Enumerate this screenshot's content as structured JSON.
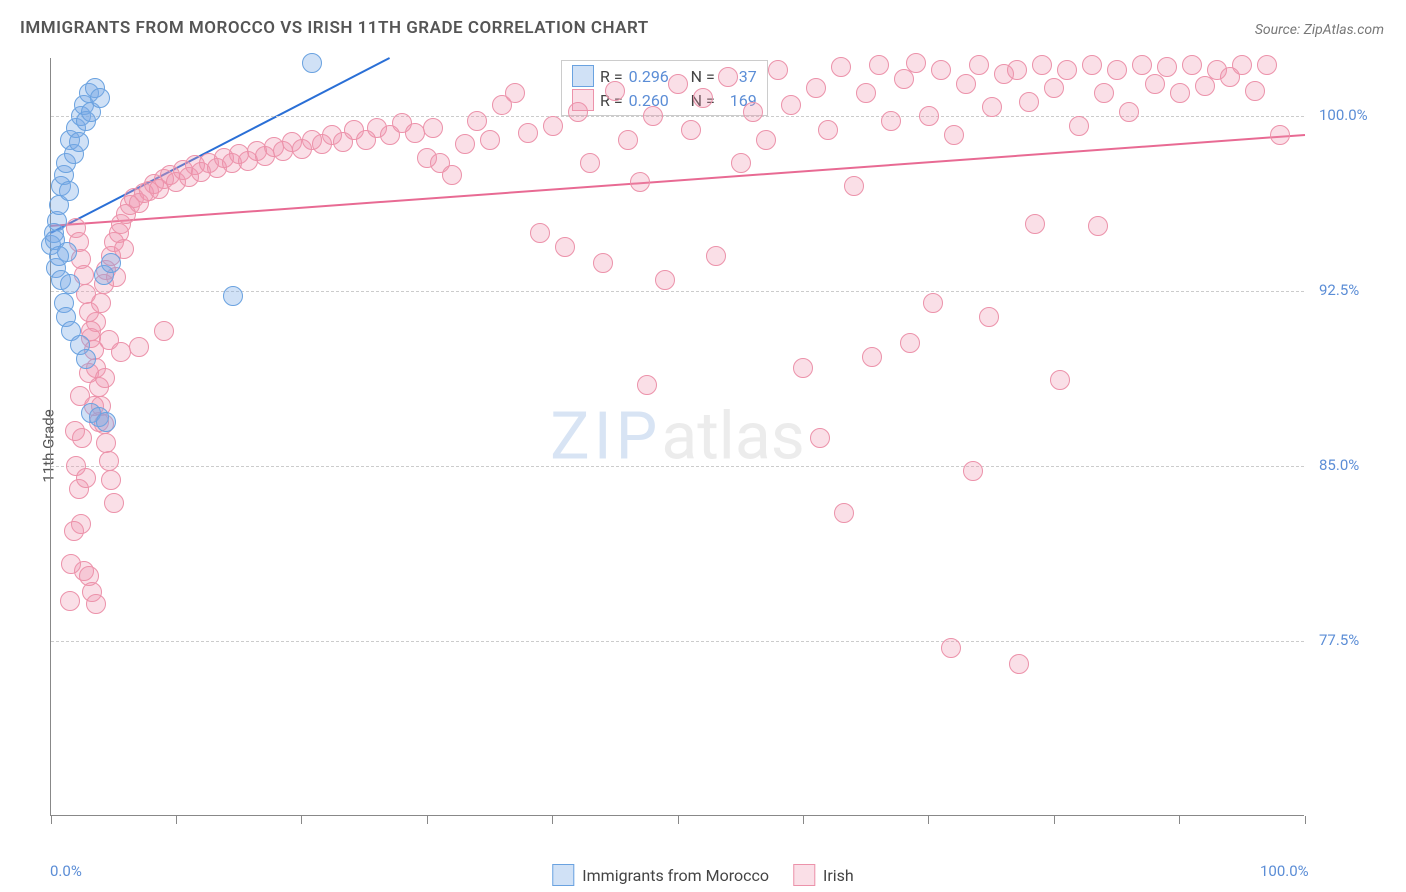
{
  "chart": {
    "type": "scatter",
    "title": "IMMIGRANTS FROM MOROCCO VS IRISH 11TH GRADE CORRELATION CHART",
    "source": "Source: ZipAtlas.com",
    "ylabel": "11th Grade",
    "watermark_zip": "ZIP",
    "watermark_atlas": "atlas",
    "background_color": "#ffffff",
    "grid_color": "#cccccc",
    "axis_color": "#888888",
    "label_color": "#5b8dd6",
    "title_color": "#555555",
    "xlim": [
      0,
      100
    ],
    "ylim": [
      70,
      102.5
    ],
    "yticks": [
      77.5,
      85.0,
      92.5,
      100.0
    ],
    "ytick_labels": [
      "77.5%",
      "85.0%",
      "92.5%",
      "100.0%"
    ],
    "xtick_labels": {
      "min": "0.0%",
      "max": "100.0%"
    },
    "xtick_positions": [
      0,
      10,
      20,
      30,
      40,
      50,
      60,
      70,
      80,
      90,
      100
    ],
    "marker_radius": 10,
    "marker_stroke_width": 1.5,
    "trend_line_width": 2,
    "series": [
      {
        "name": "Immigrants from Morocco",
        "fill_color": "rgba(120,170,230,0.35)",
        "stroke_color": "#6aa2e0",
        "line_color": "#2a6fd6",
        "r": "0.296",
        "n": "37",
        "trend": {
          "x1": 0,
          "y1": 95.0,
          "x2": 27,
          "y2": 102.5
        },
        "points": [
          [
            0,
            94.5
          ],
          [
            0.2,
            95.0
          ],
          [
            0.3,
            94.7
          ],
          [
            0.5,
            95.5
          ],
          [
            0.6,
            96.2
          ],
          [
            0.8,
            97.0
          ],
          [
            1.0,
            97.5
          ],
          [
            1.2,
            98.0
          ],
          [
            1.3,
            94.2
          ],
          [
            1.4,
            96.8
          ],
          [
            1.5,
            99.0
          ],
          [
            1.8,
            98.4
          ],
          [
            2.0,
            99.5
          ],
          [
            2.2,
            98.9
          ],
          [
            2.4,
            100.0
          ],
          [
            2.6,
            100.5
          ],
          [
            2.8,
            99.8
          ],
          [
            3.0,
            101.0
          ],
          [
            3.2,
            100.2
          ],
          [
            3.5,
            101.2
          ],
          [
            3.9,
            100.8
          ],
          [
            0.4,
            93.5
          ],
          [
            0.8,
            93.0
          ],
          [
            1.0,
            92.0
          ],
          [
            1.2,
            91.4
          ],
          [
            1.6,
            90.8
          ],
          [
            2.3,
            90.2
          ],
          [
            2.8,
            89.6
          ],
          [
            1.5,
            92.8
          ],
          [
            4.2,
            93.2
          ],
          [
            4.8,
            93.7
          ],
          [
            14.5,
            92.3
          ],
          [
            3.2,
            87.3
          ],
          [
            3.8,
            87.1
          ],
          [
            4.4,
            86.9
          ],
          [
            20.8,
            102.3
          ],
          [
            0.6,
            94.0
          ]
        ]
      },
      {
        "name": "Irish",
        "fill_color": "rgba(240,150,175,0.30)",
        "stroke_color": "#ec92aa",
        "line_color": "#e86a93",
        "r": "0.260",
        "n": "169",
        "trend": {
          "x1": 0,
          "y1": 95.3,
          "x2": 100,
          "y2": 99.2
        },
        "points": [
          [
            2,
            85.0
          ],
          [
            2.2,
            84.0
          ],
          [
            2.4,
            82.5
          ],
          [
            2.6,
            80.5
          ],
          [
            2.3,
            88.0
          ],
          [
            2.5,
            86.2
          ],
          [
            2.8,
            84.5
          ],
          [
            3.0,
            89.0
          ],
          [
            3.2,
            90.5
          ],
          [
            3.4,
            87.6
          ],
          [
            3.6,
            91.2
          ],
          [
            3.8,
            86.9
          ],
          [
            4.0,
            92.0
          ],
          [
            4.2,
            92.8
          ],
          [
            4.4,
            93.4
          ],
          [
            4.6,
            90.4
          ],
          [
            4.8,
            94.0
          ],
          [
            5.0,
            94.6
          ],
          [
            5.2,
            93.1
          ],
          [
            5.4,
            95.0
          ],
          [
            5.6,
            95.4
          ],
          [
            5.8,
            94.3
          ],
          [
            6.0,
            95.8
          ],
          [
            6.3,
            96.2
          ],
          [
            6.6,
            96.5
          ],
          [
            7.0,
            96.3
          ],
          [
            7.4,
            96.7
          ],
          [
            7.8,
            96.8
          ],
          [
            8.2,
            97.1
          ],
          [
            8.6,
            96.9
          ],
          [
            9.0,
            97.3
          ],
          [
            9.5,
            97.5
          ],
          [
            10.0,
            97.2
          ],
          [
            10.5,
            97.7
          ],
          [
            11.0,
            97.4
          ],
          [
            11.5,
            97.9
          ],
          [
            12.0,
            97.6
          ],
          [
            12.6,
            98.0
          ],
          [
            13.2,
            97.8
          ],
          [
            13.8,
            98.2
          ],
          [
            14.4,
            98.0
          ],
          [
            15.0,
            98.4
          ],
          [
            15.7,
            98.1
          ],
          [
            16.4,
            98.5
          ],
          [
            17.1,
            98.3
          ],
          [
            17.8,
            98.7
          ],
          [
            18.5,
            98.5
          ],
          [
            19.2,
            98.9
          ],
          [
            20.0,
            98.6
          ],
          [
            20.8,
            99.0
          ],
          [
            21.6,
            98.8
          ],
          [
            22.4,
            99.2
          ],
          [
            23.3,
            98.9
          ],
          [
            24.2,
            99.4
          ],
          [
            25.1,
            99.0
          ],
          [
            26.0,
            99.5
          ],
          [
            27.0,
            99.2
          ],
          [
            28.0,
            99.7
          ],
          [
            29.0,
            99.3
          ],
          [
            30.0,
            98.2
          ],
          [
            30.5,
            99.5
          ],
          [
            31.0,
            98.0
          ],
          [
            32.0,
            97.5
          ],
          [
            33.0,
            98.8
          ],
          [
            34.0,
            99.8
          ],
          [
            35.0,
            99.0
          ],
          [
            36.0,
            100.5
          ],
          [
            37.0,
            101.0
          ],
          [
            38.0,
            99.3
          ],
          [
            39.0,
            95.0
          ],
          [
            40.0,
            99.6
          ],
          [
            41.0,
            94.4
          ],
          [
            42.0,
            100.2
          ],
          [
            43.0,
            98.0
          ],
          [
            44.0,
            93.7
          ],
          [
            45.0,
            101.1
          ],
          [
            46.0,
            99.0
          ],
          [
            47.0,
            97.2
          ],
          [
            47.5,
            88.5
          ],
          [
            48.0,
            100.0
          ],
          [
            49.0,
            93.0
          ],
          [
            50.0,
            101.4
          ],
          [
            51.0,
            99.4
          ],
          [
            52.0,
            100.8
          ],
          [
            53.0,
            94.0
          ],
          [
            54.0,
            101.7
          ],
          [
            55.0,
            98.0
          ],
          [
            56.0,
            100.2
          ],
          [
            57.0,
            99.0
          ],
          [
            58.0,
            102.0
          ],
          [
            59.0,
            100.5
          ],
          [
            60.0,
            89.2
          ],
          [
            61.0,
            101.2
          ],
          [
            61.3,
            86.2
          ],
          [
            62.0,
            99.4
          ],
          [
            63.0,
            102.1
          ],
          [
            63.2,
            83.0
          ],
          [
            64.0,
            97.0
          ],
          [
            65.0,
            101.0
          ],
          [
            65.5,
            89.7
          ],
          [
            66.0,
            102.2
          ],
          [
            67.0,
            99.8
          ],
          [
            68.0,
            101.6
          ],
          [
            68.5,
            90.3
          ],
          [
            69.0,
            102.3
          ],
          [
            70.0,
            100.0
          ],
          [
            70.3,
            92.0
          ],
          [
            71.0,
            102.0
          ],
          [
            71.8,
            77.2
          ],
          [
            72.0,
            99.2
          ],
          [
            73.0,
            101.4
          ],
          [
            73.5,
            84.8
          ],
          [
            74.0,
            102.2
          ],
          [
            74.8,
            91.4
          ],
          [
            75.0,
            100.4
          ],
          [
            76.0,
            101.8
          ],
          [
            77.0,
            102.0
          ],
          [
            77.2,
            76.5
          ],
          [
            78.0,
            100.6
          ],
          [
            78.5,
            95.4
          ],
          [
            79.0,
            102.2
          ],
          [
            80.0,
            101.2
          ],
          [
            80.5,
            88.7
          ],
          [
            81.0,
            102.0
          ],
          [
            82.0,
            99.6
          ],
          [
            83.0,
            102.2
          ],
          [
            83.5,
            95.3
          ],
          [
            84.0,
            101.0
          ],
          [
            85.0,
            102.0
          ],
          [
            86.0,
            100.2
          ],
          [
            87.0,
            102.2
          ],
          [
            88.0,
            101.4
          ],
          [
            89.0,
            102.1
          ],
          [
            90.0,
            101.0
          ],
          [
            91.0,
            102.2
          ],
          [
            92.0,
            101.3
          ],
          [
            93.0,
            102.0
          ],
          [
            94.0,
            101.7
          ],
          [
            95.0,
            102.2
          ],
          [
            96.0,
            101.1
          ],
          [
            97.0,
            102.2
          ],
          [
            98.0,
            99.2
          ],
          [
            2.0,
            95.2
          ],
          [
            2.2,
            94.6
          ],
          [
            2.4,
            93.9
          ],
          [
            2.6,
            93.2
          ],
          [
            2.8,
            92.4
          ],
          [
            3.0,
            91.6
          ],
          [
            3.2,
            90.8
          ],
          [
            3.4,
            90.0
          ],
          [
            3.6,
            89.2
          ],
          [
            3.8,
            88.4
          ],
          [
            4.0,
            87.6
          ],
          [
            4.2,
            86.8
          ],
          [
            4.4,
            86.0
          ],
          [
            4.6,
            85.2
          ],
          [
            4.8,
            84.4
          ],
          [
            5.0,
            83.4
          ],
          [
            1.8,
            82.2
          ],
          [
            1.6,
            80.8
          ],
          [
            1.5,
            79.2
          ],
          [
            3.0,
            80.3
          ],
          [
            3.3,
            79.6
          ],
          [
            3.6,
            79.1
          ],
          [
            1.9,
            86.5
          ],
          [
            4.3,
            88.8
          ],
          [
            5.6,
            89.9
          ],
          [
            7.0,
            90.1
          ],
          [
            9.0,
            90.8
          ]
        ]
      }
    ],
    "legend_top": {
      "r_label": "R =",
      "n_label": "N =",
      "value_color": "#5b8dd6",
      "label_color": "#444444"
    },
    "legend_bottom_labels": [
      "Immigrants from Morocco",
      "Irish"
    ]
  }
}
